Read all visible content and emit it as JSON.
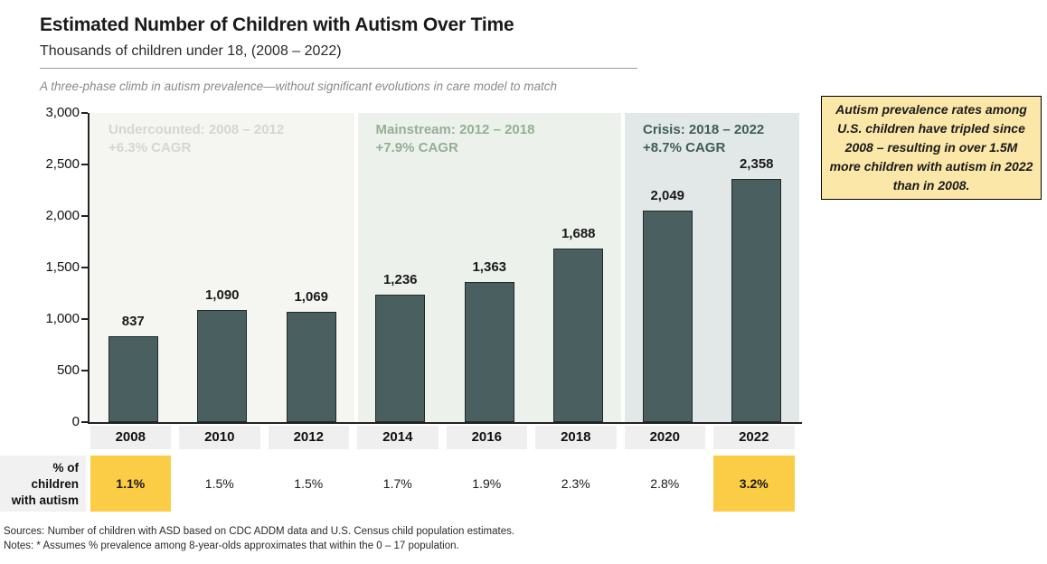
{
  "header": {
    "title": "Estimated Number of Children with Autism Over Time",
    "subtitle": "Thousands of children under 18, (2008 – 2022)",
    "annotation": "A three-phase climb in autism prevalence—without significant evolutions in care model to match"
  },
  "callout": {
    "text": "Autism prevalence rates among U.S. children have tripled since 2008 – resulting in over 1.5M more children with autism in 2022 than in 2008.",
    "background": "#fbe7a8",
    "border": "#000000"
  },
  "chart_data": {
    "type": "bar",
    "title": "Estimated Number of Children with Autism Over Time",
    "subtitle": "Thousands of children under 18, (2008 – 2022)",
    "categories": [
      "2008",
      "2010",
      "2012",
      "2014",
      "2016",
      "2018",
      "2020",
      "2022"
    ],
    "values": [
      837,
      1090,
      1069,
      1236,
      1363,
      1688,
      2049,
      2358
    ],
    "value_labels": [
      "837",
      "1,090",
      "1,069",
      "1,236",
      "1,363",
      "1,688",
      "2,049",
      "2,358"
    ],
    "xlabel": "",
    "ylabel": "",
    "ylim": [
      0,
      3000
    ],
    "ytick_labels": [
      "3,000",
      "2,500",
      "2,000",
      "1,500",
      "1,000",
      "500",
      "0"
    ],
    "grid": false,
    "legend": "none",
    "bar_color": "#4a6060",
    "phases": [
      {
        "label": "Undercounted: 2008 – 2012",
        "cagr": "+6.3% CAGR",
        "text_color": "#d2d8d0",
        "background": "#f5f5f2",
        "span": 3
      },
      {
        "label": "Mainstream: 2012 – 2018",
        "cagr": "+7.9% CAGR",
        "text_color": "#93b095",
        "background": "#ecf1ec",
        "span": 3
      },
      {
        "label": "Crisis: 2018 – 2022",
        "cagr": "+8.7% CAGR",
        "text_color": "#3e5f55",
        "background": "#e2e8e7",
        "span": 2
      }
    ],
    "prevalence_row": {
      "label_lines": [
        "% of",
        "children",
        "with autism"
      ],
      "values": [
        "1.1%",
        "1.5%",
        "1.5%",
        "1.7%",
        "1.9%",
        "2.3%",
        "2.8%",
        "3.2%"
      ],
      "highlighted_indices": [
        0,
        7
      ],
      "highlight_color": "#fbcc45"
    }
  },
  "footer": {
    "sources": "Sources: Number of children with ASD based on CDC ADDM data and U.S. Census child population estimates.",
    "notes": "Notes:  * Assumes % prevalence among 8-year-olds approximates that within the 0 – 17 population."
  }
}
